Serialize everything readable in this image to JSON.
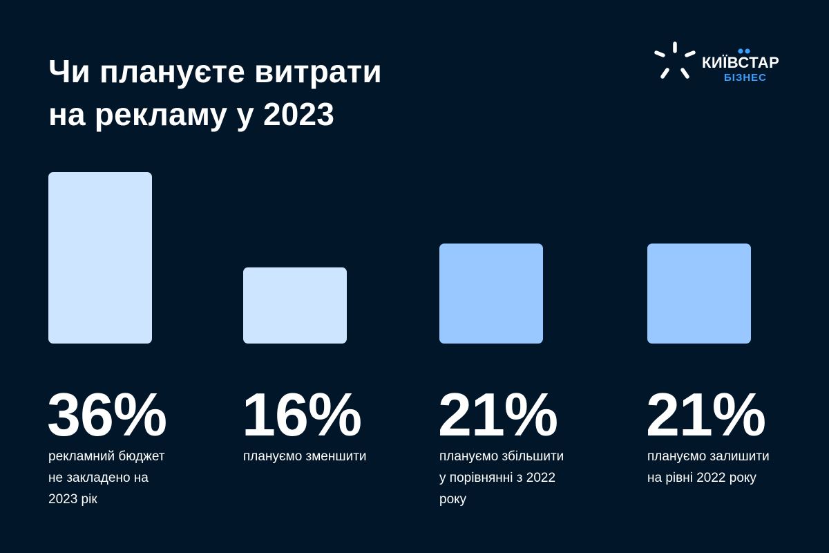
{
  "title_lines": [
    "Чи плануєте витрати",
    "на рекламу у 2023"
  ],
  "logo": {
    "word": "КИЇВСТАР",
    "sub": "БІЗНЕС",
    "icon": "kyivstar-star-icon",
    "accent_color": "#3aa0ff"
  },
  "colors": {
    "background": "#021629",
    "bar_light": "#cde5ff",
    "bar_blue": "#98c8ff"
  },
  "chart_data": {
    "type": "bar",
    "unit": "%",
    "values": [
      36,
      16,
      21,
      21
    ],
    "value_labels": [
      "36%",
      "16%",
      "21%",
      "21%"
    ],
    "captions": [
      [
        "рекламний бюджет",
        "не закладено на",
        "2023 рік"
      ],
      [
        "плануємо зменшити"
      ],
      [
        "плануємо збільшити",
        "у порівнянні з 2022",
        "року"
      ],
      [
        "плануємо залишити",
        "на рівні 2022 року"
      ]
    ],
    "bar_colors": [
      "#cde5ff",
      "#cde5ff",
      "#98c8ff",
      "#98c8ff"
    ],
    "title": "",
    "xlabel": "",
    "ylabel": "",
    "grid": false
  }
}
